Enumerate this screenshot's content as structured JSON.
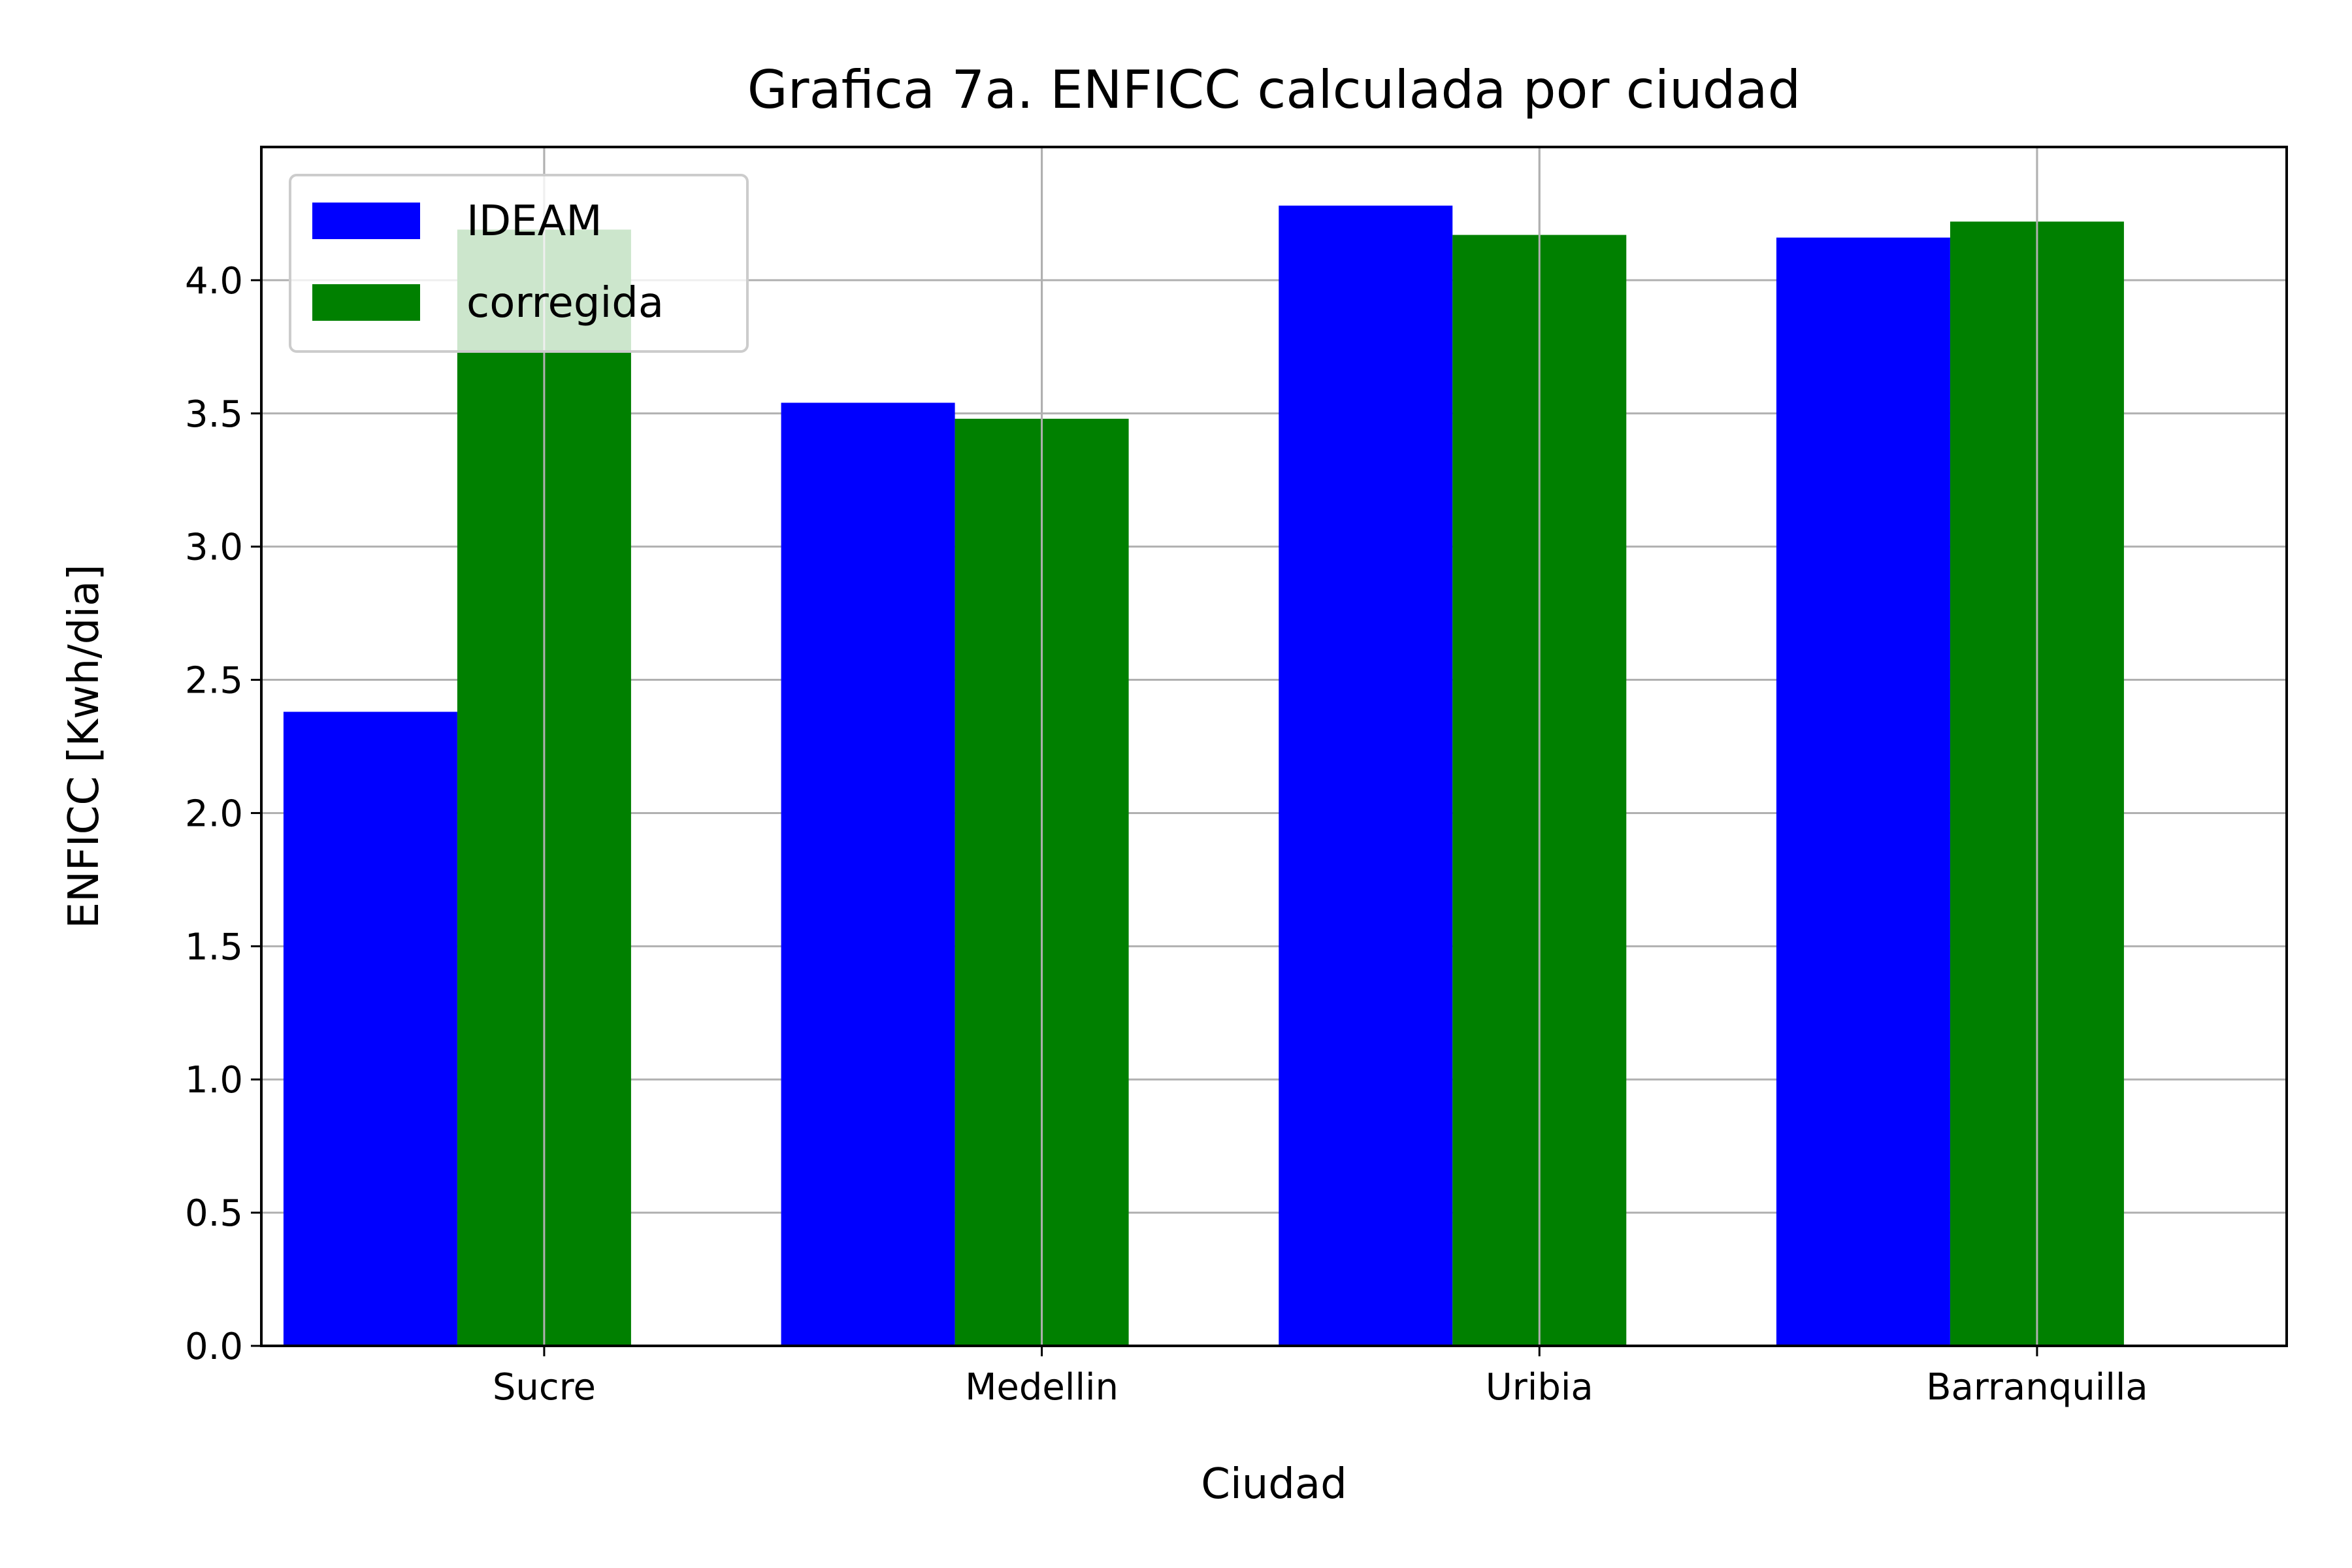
{
  "chart_data": {
    "type": "bar",
    "title": "Grafica 7a. ENFICC calculada por ciudad",
    "xlabel": "Ciudad",
    "ylabel": "ENFICC [Kwh/dia]",
    "categories": [
      "Sucre",
      "Medellin",
      "Uribia",
      "Barranquilla"
    ],
    "series": [
      {
        "name": "IDEAM",
        "color": "#0000ff",
        "values": [
          2.38,
          3.54,
          4.28,
          4.16
        ]
      },
      {
        "name": "corregida",
        "color": "#008000",
        "values": [
          4.19,
          3.48,
          4.17,
          4.22
        ]
      }
    ],
    "ylim": [
      0,
      4.5
    ],
    "yticks": [
      0.0,
      0.5,
      1.0,
      1.5,
      2.0,
      2.5,
      3.0,
      3.5,
      4.0
    ],
    "ytick_labels": [
      "0.0",
      "0.5",
      "1.0",
      "1.5",
      "2.0",
      "2.5",
      "3.0",
      "3.5",
      "4.0"
    ],
    "grid": true,
    "legend_position": "top-left"
  }
}
